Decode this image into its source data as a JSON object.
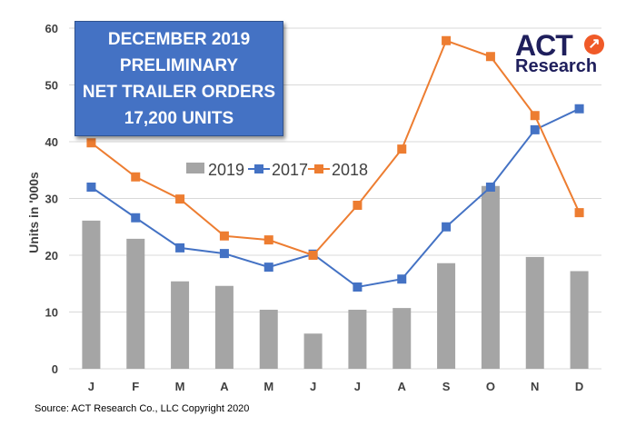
{
  "chart_data": {
    "type": "bar+line",
    "title_box": [
      "DECEMBER 2019",
      "PRELIMINARY",
      "NET TRAILER ORDERS",
      "17,200 UNITS"
    ],
    "ylabel": "Units in '000s",
    "xlabel": "",
    "ylim": [
      0,
      60
    ],
    "yticks": [
      0,
      10,
      20,
      30,
      40,
      50,
      60
    ],
    "grid": true,
    "legend_position": "center",
    "categories": [
      "J",
      "F",
      "M",
      "A",
      "M",
      "J",
      "J",
      "A",
      "S",
      "O",
      "N",
      "D"
    ],
    "series": [
      {
        "name": "2019",
        "kind": "bar",
        "color": "#a5a5a5",
        "values": [
          26.1,
          22.9,
          15.4,
          14.6,
          10.4,
          6.2,
          10.4,
          10.7,
          18.6,
          32.2,
          19.7,
          17.2
        ]
      },
      {
        "name": "2017",
        "kind": "line",
        "color": "#4472c4",
        "values": [
          32.0,
          26.6,
          21.3,
          20.3,
          17.9,
          20.2,
          14.4,
          15.8,
          25.0,
          32.0,
          42.1,
          45.8
        ]
      },
      {
        "name": "2018",
        "kind": "line",
        "color": "#ed7d31",
        "values": [
          39.8,
          33.8,
          29.9,
          23.4,
          22.7,
          20.0,
          28.8,
          38.7,
          57.8,
          55.0,
          44.6,
          27.5
        ]
      }
    ]
  },
  "logo": {
    "line1": "ACT",
    "line2": "Research"
  },
  "source": "Source: ACT Research Co., LLC  Copyright 2020"
}
